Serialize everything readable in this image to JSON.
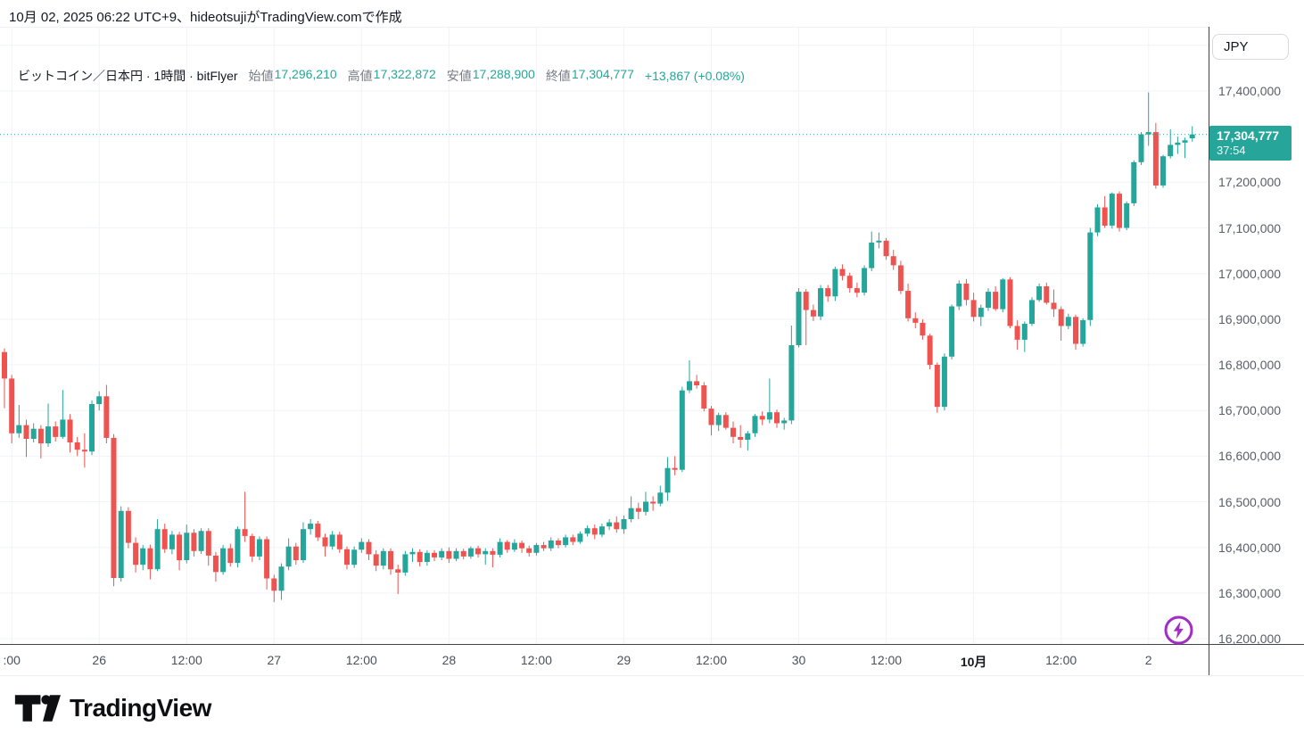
{
  "attribution": "10月 02, 2025 06:22 UTC+9、hideotsujiがTradingView.comで作成",
  "legend": {
    "title": "ビットコイン／日本円 · 1時間 · bitFlyer",
    "items": [
      {
        "label": "始値",
        "value": "17,296,210"
      },
      {
        "label": "高値",
        "value": "17,322,872"
      },
      {
        "label": "安値",
        "value": "17,288,900"
      },
      {
        "label": "終値",
        "value": "17,304,777"
      }
    ],
    "change": "+13,867 (+0.08%)"
  },
  "price_axis": {
    "currency_label": "JPY",
    "badge": {
      "price": "17,304,777",
      "countdown": "37:54"
    }
  },
  "footer": {
    "brand": "TradingView"
  },
  "icons": {
    "boost": "lightning-bolt",
    "logo": "tradingview-mark"
  },
  "chart_data": {
    "type": "candlestick",
    "title": "ビットコイン／日本円",
    "interval": "1時間",
    "exchange": "bitFlyer",
    "currency": "JPY",
    "current_bar": {
      "open": 17296210,
      "high": 17322872,
      "low": 17288900,
      "close": 17304777,
      "change": 13867,
      "change_pct": 0.08
    },
    "last_price": 17304777,
    "grid": true,
    "y_axis": {
      "min": 16200000,
      "max": 17400000,
      "tick_step": 100000,
      "tick_labels": [
        "17,400,000",
        "17,200,000",
        "17,100,000",
        "17,000,000",
        "16,900,000",
        "16,800,000",
        "16,700,000",
        "16,600,000",
        "16,500,000",
        "16,400,000",
        "16,300,000",
        "16,200,000"
      ]
    },
    "x_axis": {
      "tick_labels": [
        {
          "label": ":00"
        },
        {
          "label": "26"
        },
        {
          "label": "12:00"
        },
        {
          "label": "27"
        },
        {
          "label": "12:00"
        },
        {
          "label": "28"
        },
        {
          "label": "12:00"
        },
        {
          "label": "29"
        },
        {
          "label": "12:00"
        },
        {
          "label": "30"
        },
        {
          "label": "12:00"
        },
        {
          "label": "10月",
          "bold": true
        },
        {
          "label": "12:00"
        },
        {
          "label": "2"
        }
      ]
    },
    "colors": {
      "up": "#26a69a",
      "down": "#ef5350",
      "grid": "#f0f3fa",
      "price_line": "#26a69a",
      "badge_bg": "#26a69a",
      "boost": "#a22dc4"
    },
    "candles": [
      [
        16828000,
        16836000,
        16705000,
        16770000
      ],
      [
        16770000,
        16778000,
        16628000,
        16650000
      ],
      [
        16650000,
        16712000,
        16640000,
        16668000
      ],
      [
        16668000,
        16680000,
        16598000,
        16638000
      ],
      [
        16638000,
        16672000,
        16630000,
        16660000
      ],
      [
        16660000,
        16668000,
        16595000,
        16628000
      ],
      [
        16628000,
        16715000,
        16620000,
        16665000
      ],
      [
        16665000,
        16676000,
        16632000,
        16642000
      ],
      [
        16642000,
        16745000,
        16638000,
        16680000
      ],
      [
        16680000,
        16692000,
        16608000,
        16630000
      ],
      [
        16630000,
        16642000,
        16600000,
        16614000
      ],
      [
        16614000,
        16650000,
        16575000,
        16610000
      ],
      [
        16610000,
        16722000,
        16602000,
        16714000
      ],
      [
        16714000,
        16742000,
        16700000,
        16731000
      ],
      [
        16731000,
        16756000,
        16628000,
        16640000
      ],
      [
        16640000,
        16648000,
        16315000,
        16333000
      ],
      [
        16333000,
        16490000,
        16325000,
        16480000
      ],
      [
        16480000,
        16488000,
        16398000,
        16410000
      ],
      [
        16410000,
        16422000,
        16345000,
        16362000
      ],
      [
        16362000,
        16405000,
        16350000,
        16398000
      ],
      [
        16398000,
        16406000,
        16330000,
        16352000
      ],
      [
        16352000,
        16462000,
        16348000,
        16440000
      ],
      [
        16440000,
        16452000,
        16388000,
        16396000
      ],
      [
        16396000,
        16436000,
        16385000,
        16428000
      ],
      [
        16428000,
        16434000,
        16350000,
        16372000
      ],
      [
        16372000,
        16450000,
        16365000,
        16432000
      ],
      [
        16432000,
        16440000,
        16380000,
        16392000
      ],
      [
        16392000,
        16442000,
        16386000,
        16436000
      ],
      [
        16436000,
        16442000,
        16360000,
        16382000
      ],
      [
        16382000,
        16390000,
        16325000,
        16346000
      ],
      [
        16346000,
        16405000,
        16340000,
        16398000
      ],
      [
        16398000,
        16408000,
        16358000,
        16366000
      ],
      [
        16366000,
        16446000,
        16356000,
        16440000
      ],
      [
        16440000,
        16522000,
        16412000,
        16425000
      ],
      [
        16425000,
        16430000,
        16368000,
        16380000
      ],
      [
        16380000,
        16424000,
        16372000,
        16418000
      ],
      [
        16418000,
        16424000,
        16308000,
        16332000
      ],
      [
        16332000,
        16340000,
        16280000,
        16305000
      ],
      [
        16305000,
        16365000,
        16285000,
        16358000
      ],
      [
        16358000,
        16420000,
        16350000,
        16402000
      ],
      [
        16402000,
        16410000,
        16362000,
        16372000
      ],
      [
        16372000,
        16455000,
        16366000,
        16440000
      ],
      [
        16440000,
        16462000,
        16428000,
        16452000
      ],
      [
        16452000,
        16458000,
        16414000,
        16422000
      ],
      [
        16422000,
        16430000,
        16380000,
        16402000
      ],
      [
        16402000,
        16436000,
        16395000,
        16428000
      ],
      [
        16428000,
        16434000,
        16388000,
        16396000
      ],
      [
        16396000,
        16402000,
        16352000,
        16362000
      ],
      [
        16362000,
        16402000,
        16355000,
        16395000
      ],
      [
        16395000,
        16420000,
        16388000,
        16412000
      ],
      [
        16412000,
        16418000,
        16372000,
        16385000
      ],
      [
        16385000,
        16394000,
        16348000,
        16360000
      ],
      [
        16360000,
        16398000,
        16352000,
        16392000
      ],
      [
        16392000,
        16398000,
        16340000,
        16352000
      ],
      [
        16352000,
        16362000,
        16298000,
        16345000
      ],
      [
        16345000,
        16392000,
        16338000,
        16385000
      ],
      [
        16385000,
        16398000,
        16368000,
        16390000
      ],
      [
        16390000,
        16396000,
        16358000,
        16368000
      ],
      [
        16368000,
        16394000,
        16360000,
        16388000
      ],
      [
        16388000,
        16394000,
        16370000,
        16378000
      ],
      [
        16378000,
        16398000,
        16372000,
        16392000
      ],
      [
        16392000,
        16400000,
        16366000,
        16375000
      ],
      [
        16375000,
        16398000,
        16370000,
        16392000
      ],
      [
        16392000,
        16397000,
        16374000,
        16380000
      ],
      [
        16380000,
        16402000,
        16375000,
        16398000
      ],
      [
        16398000,
        16404000,
        16378000,
        16385000
      ],
      [
        16385000,
        16398000,
        16362000,
        16392000
      ],
      [
        16392000,
        16398000,
        16356000,
        16384000
      ],
      [
        16384000,
        16420000,
        16378000,
        16412000
      ],
      [
        16412000,
        16416000,
        16388000,
        16395000
      ],
      [
        16395000,
        16418000,
        16390000,
        16410000
      ],
      [
        16410000,
        16415000,
        16388000,
        16398000
      ],
      [
        16398000,
        16404000,
        16380000,
        16388000
      ],
      [
        16388000,
        16410000,
        16382000,
        16405000
      ],
      [
        16405000,
        16412000,
        16392000,
        16398000
      ],
      [
        16398000,
        16422000,
        16392000,
        16415000
      ],
      [
        16415000,
        16420000,
        16398000,
        16405000
      ],
      [
        16405000,
        16428000,
        16400000,
        16422000
      ],
      [
        16422000,
        16428000,
        16405000,
        16412000
      ],
      [
        16412000,
        16435000,
        16408000,
        16430000
      ],
      [
        16430000,
        16448000,
        16424000,
        16442000
      ],
      [
        16442000,
        16450000,
        16418000,
        16428000
      ],
      [
        16428000,
        16452000,
        16422000,
        16446000
      ],
      [
        16446000,
        16462000,
        16438000,
        16455000
      ],
      [
        16455000,
        16468000,
        16432000,
        16440000
      ],
      [
        16440000,
        16470000,
        16430000,
        16462000
      ],
      [
        16462000,
        16512000,
        16455000,
        16486000
      ],
      [
        16486000,
        16498000,
        16462000,
        16478000
      ],
      [
        16478000,
        16522000,
        16470000,
        16500000
      ],
      [
        16500000,
        16512000,
        16480000,
        16496000
      ],
      [
        16496000,
        16535000,
        16490000,
        16520000
      ],
      [
        16520000,
        16598000,
        16502000,
        16574000
      ],
      [
        16574000,
        16600000,
        16558000,
        16570000
      ],
      [
        16570000,
        16752000,
        16565000,
        16744000
      ],
      [
        16744000,
        16810000,
        16738000,
        16764000
      ],
      [
        16764000,
        16778000,
        16748000,
        16755000
      ],
      [
        16755000,
        16762000,
        16698000,
        16704000
      ],
      [
        16704000,
        16710000,
        16645000,
        16668000
      ],
      [
        16668000,
        16695000,
        16655000,
        16690000
      ],
      [
        16690000,
        16696000,
        16658000,
        16662000
      ],
      [
        16662000,
        16676000,
        16628000,
        16642000
      ],
      [
        16642000,
        16668000,
        16618000,
        16636000
      ],
      [
        16636000,
        16655000,
        16612000,
        16650000
      ],
      [
        16650000,
        16692000,
        16642000,
        16688000
      ],
      [
        16688000,
        16698000,
        16668000,
        16680000
      ],
      [
        16680000,
        16770000,
        16672000,
        16696000
      ],
      [
        16696000,
        16702000,
        16662000,
        16672000
      ],
      [
        16672000,
        16684000,
        16658000,
        16678000
      ],
      [
        16678000,
        16886000,
        16670000,
        16843000
      ],
      [
        16843000,
        16968000,
        16838000,
        16960000
      ],
      [
        16960000,
        16966000,
        16843000,
        16920000
      ],
      [
        16920000,
        16932000,
        16896000,
        16906000
      ],
      [
        16906000,
        16975000,
        16898000,
        16968000
      ],
      [
        16968000,
        16975000,
        16938000,
        16950000
      ],
      [
        16950000,
        17015000,
        16940000,
        17010000
      ],
      [
        17010000,
        17020000,
        16985000,
        16995000
      ],
      [
        16995000,
        17002000,
        16958000,
        16968000
      ],
      [
        16968000,
        16980000,
        16948000,
        16958000
      ],
      [
        16958000,
        17018000,
        16952000,
        17012000
      ],
      [
        17012000,
        17092000,
        17005000,
        17068000
      ],
      [
        17068000,
        17090000,
        17055000,
        17072000
      ],
      [
        17072000,
        17078000,
        17030000,
        17038000
      ],
      [
        17038000,
        17052000,
        17008000,
        17018000
      ],
      [
        17018000,
        17028000,
        16955000,
        16962000
      ],
      [
        16962000,
        16978000,
        16895000,
        16902000
      ],
      [
        16902000,
        16915000,
        16880000,
        16892000
      ],
      [
        16892000,
        16900000,
        16855000,
        16864000
      ],
      [
        16864000,
        16868000,
        16790000,
        16800000
      ],
      [
        16800000,
        16805000,
        16695000,
        16708000
      ],
      [
        16708000,
        16825000,
        16700000,
        16818000
      ],
      [
        16818000,
        16932000,
        16812000,
        16928000
      ],
      [
        16928000,
        16985000,
        16920000,
        16978000
      ],
      [
        16978000,
        16988000,
        16930000,
        16942000
      ],
      [
        16942000,
        16958000,
        16895000,
        16905000
      ],
      [
        16905000,
        16932000,
        16885000,
        16925000
      ],
      [
        16925000,
        16968000,
        16918000,
        16960000
      ],
      [
        16960000,
        16972000,
        16918000,
        16922000
      ],
      [
        16922000,
        16990000,
        16915000,
        16987000
      ],
      [
        16987000,
        16992000,
        16880000,
        16885000
      ],
      [
        16885000,
        16898000,
        16833000,
        16855000
      ],
      [
        16855000,
        16895000,
        16828000,
        16890000
      ],
      [
        16890000,
        16948000,
        16885000,
        16942000
      ],
      [
        16942000,
        16978000,
        16938000,
        16972000
      ],
      [
        16972000,
        16980000,
        16932000,
        16936000
      ],
      [
        16936000,
        16965000,
        16905000,
        16922000
      ],
      [
        16922000,
        16928000,
        16853000,
        16885000
      ],
      [
        16885000,
        16912000,
        16878000,
        16905000
      ],
      [
        16905000,
        16910000,
        16833000,
        16846000
      ],
      [
        16846000,
        16902000,
        16840000,
        16898000
      ],
      [
        16898000,
        17100000,
        16885000,
        17090000
      ],
      [
        17090000,
        17152000,
        17082000,
        17145000
      ],
      [
        17145000,
        17170000,
        17100000,
        17105000
      ],
      [
        17105000,
        17178000,
        17098000,
        17175000
      ],
      [
        17175000,
        17180000,
        17092000,
        17100000
      ],
      [
        17100000,
        17158000,
        17095000,
        17154000
      ],
      [
        17154000,
        17248000,
        17148000,
        17244000
      ],
      [
        17244000,
        17310000,
        17238000,
        17305000
      ],
      [
        17305000,
        17397000,
        17280000,
        17310000
      ],
      [
        17310000,
        17330000,
        17186000,
        17193000
      ],
      [
        17193000,
        17260000,
        17188000,
        17257000
      ],
      [
        17257000,
        17316000,
        17252000,
        17282000
      ],
      [
        17282000,
        17300000,
        17262000,
        17287000
      ],
      [
        17287000,
        17298000,
        17253000,
        17292000
      ],
      [
        17296210,
        17322872,
        17288900,
        17304777
      ]
    ]
  }
}
